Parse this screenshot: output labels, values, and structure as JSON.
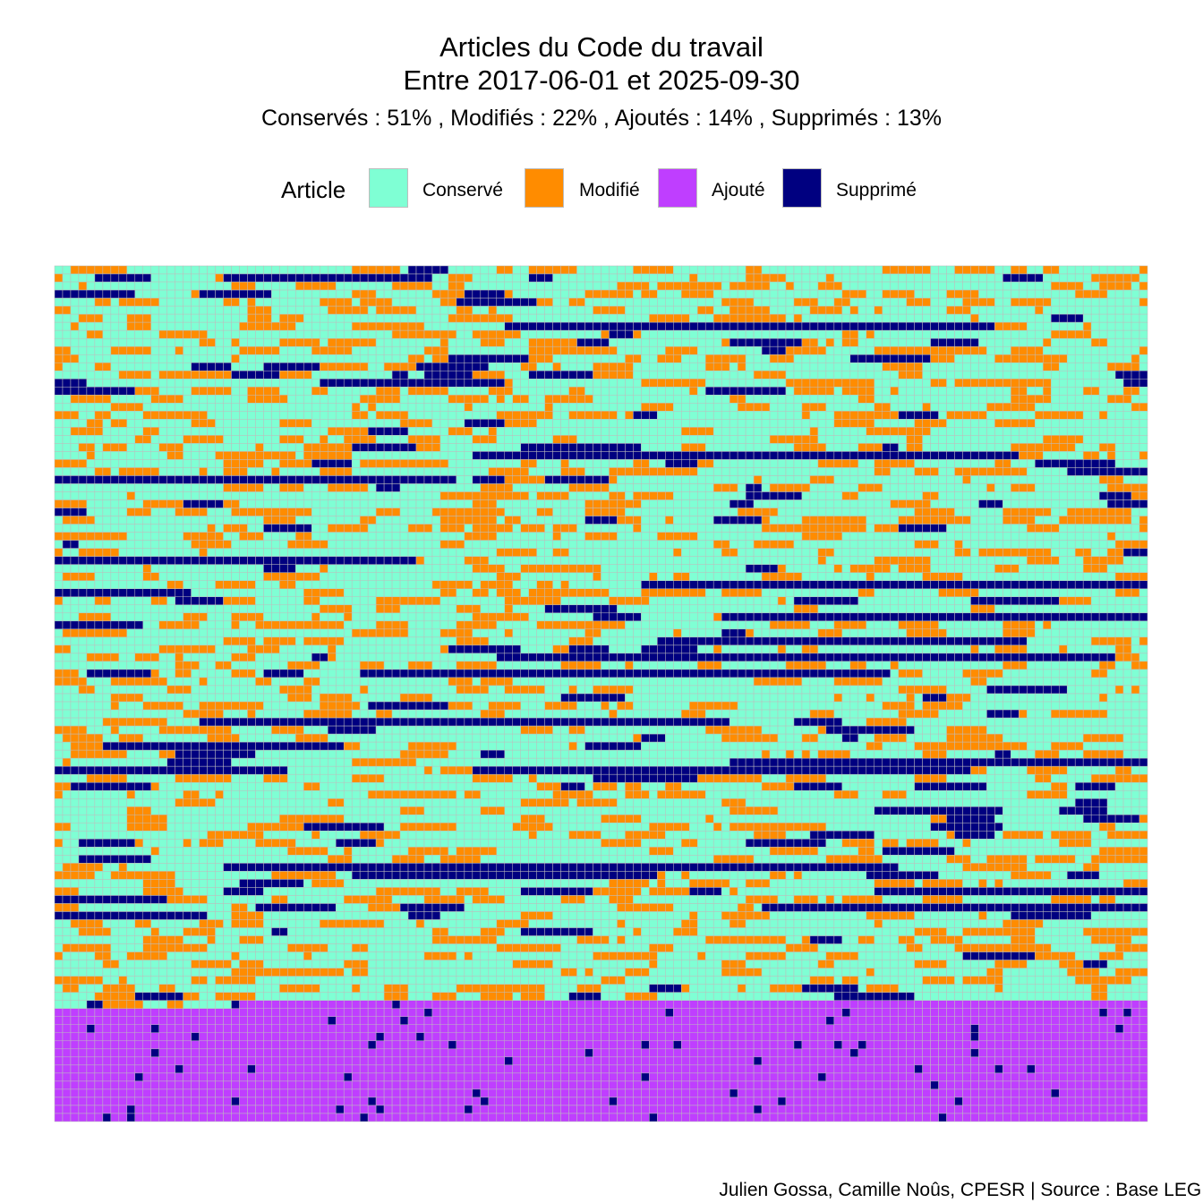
{
  "chart_data": {
    "type": "heatmap",
    "title_line1": "Articles du Code du travail",
    "title_line2": "Entre 2017-06-01 et 2025-09-30",
    "subtitle": "Conservés :  51% , Modifiés :  22% , Ajoutés :  14% , Supprimés :  13%",
    "legend_title": "Article",
    "categories": [
      {
        "label": "Conservé",
        "color": "#7fffd4",
        "share": 0.51
      },
      {
        "label": "Modifié",
        "color": "#ff8c00",
        "share": 0.22
      },
      {
        "label": "Ajouté",
        "color": "#bf3eff",
        "share": 0.14
      },
      {
        "label": "Supprimé",
        "color": "#000080",
        "share": 0.13
      }
    ],
    "grid_columns": 136,
    "grid_rows": 106,
    "cell_border_color": "#bdbdbd",
    "caption": "Julien Gossa, Camille Noûs, CPESR  |  Source : Base LEGI"
  }
}
